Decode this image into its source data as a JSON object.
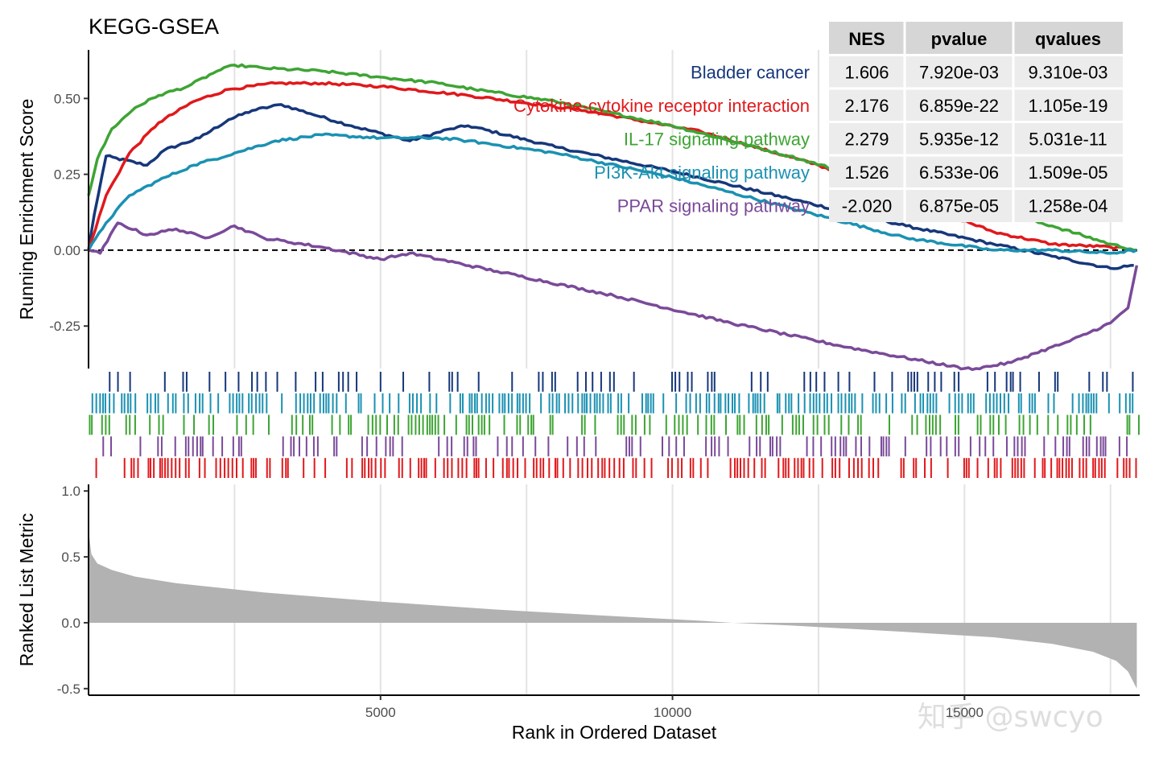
{
  "title": "KEGG-GSEA",
  "watermark": "知乎 @swcyo",
  "chart_data": {
    "type": "line",
    "xlabel": "Rank in Ordered Dataset",
    "xlim": [
      0,
      18000
    ],
    "xticks": [
      5000,
      10000,
      15000
    ],
    "grid": true,
    "legend": "top-right",
    "panels": {
      "es": {
        "ylabel": "Running Enrichment Score",
        "ylim": [
          -0.39,
          0.66
        ],
        "yticks": [
          "0.50",
          "0.25",
          "0.00",
          "-0.25"
        ],
        "zero_line": "dashed"
      },
      "metric": {
        "ylabel": "Ranked List Metric",
        "ylim": [
          -0.55,
          1.05
        ],
        "yticks": [
          "1.0",
          "0.5",
          "0.0",
          "-0.5"
        ]
      }
    },
    "series": [
      {
        "name": "Bladder cancer",
        "color": "#16377a",
        "x": [
          0,
          100,
          300,
          1000,
          1300,
          1900,
          2400,
          2800,
          3300,
          3800,
          4500,
          5500,
          6200,
          6500,
          8000,
          10000,
          12000,
          14000,
          15500,
          16500,
          17500,
          17900
        ],
        "y": [
          0,
          0.12,
          0.31,
          0.28,
          0.33,
          0.37,
          0.43,
          0.46,
          0.48,
          0.45,
          0.41,
          0.36,
          0.4,
          0.41,
          0.34,
          0.26,
          0.17,
          0.08,
          0.02,
          -0.02,
          -0.06,
          -0.05
        ]
      },
      {
        "name": "Cytokine-cytokine receptor interaction",
        "color": "#e0191c",
        "x": [
          0,
          300,
          700,
          1200,
          1800,
          2400,
          3200,
          4000,
          5000,
          6500,
          8500,
          10500,
          12500,
          14000,
          15500,
          16500,
          17500,
          17950
        ],
        "y": [
          0,
          0.18,
          0.32,
          0.42,
          0.49,
          0.53,
          0.55,
          0.55,
          0.54,
          0.51,
          0.46,
          0.39,
          0.28,
          0.17,
          0.06,
          0.02,
          0.01,
          0
        ]
      },
      {
        "name": "IL-17 signaling pathway",
        "color": "#3ea434",
        "x": [
          0,
          150,
          400,
          800,
          1200,
          1700,
          2200,
          2500,
          3000,
          4000,
          5000,
          6000,
          6600,
          8000,
          10000,
          12000,
          14000,
          15500,
          16500,
          17500,
          17950
        ],
        "y": [
          0.18,
          0.3,
          0.4,
          0.47,
          0.51,
          0.54,
          0.59,
          0.61,
          0.6,
          0.59,
          0.57,
          0.55,
          0.53,
          0.49,
          0.41,
          0.31,
          0.2,
          0.13,
          0.08,
          0.02,
          0
        ]
      },
      {
        "name": "PI3K-Akt signaling pathway",
        "color": "#1b91b2",
        "x": [
          0,
          300,
          700,
          1200,
          1800,
          2500,
          3200,
          4000,
          5000,
          6000,
          6500,
          8000,
          10000,
          12000,
          14000,
          15500,
          16500,
          17500,
          17950
        ],
        "y": [
          0,
          0.09,
          0.18,
          0.23,
          0.28,
          0.32,
          0.36,
          0.38,
          0.37,
          0.37,
          0.36,
          0.32,
          0.24,
          0.14,
          0.04,
          0,
          0,
          -0.01,
          0
        ]
      },
      {
        "name": "PPAR signaling pathway",
        "color": "#7a4a99",
        "x": [
          0,
          200,
          500,
          1000,
          1500,
          2000,
          2500,
          3000,
          4000,
          5000,
          5500,
          7000,
          9000,
          11000,
          13000,
          15000,
          15200,
          15800,
          16200,
          16800,
          17500,
          17800,
          17950
        ],
        "y": [
          0,
          -0.01,
          0.09,
          0.05,
          0.07,
          0.04,
          0.08,
          0.04,
          0.01,
          -0.03,
          -0.01,
          -0.07,
          -0.15,
          -0.24,
          -0.32,
          -0.39,
          -0.39,
          -0.37,
          -0.34,
          -0.3,
          -0.24,
          -0.19,
          -0.05
        ]
      }
    ],
    "stats_table": {
      "headers": [
        "NES",
        "pvalue",
        "qvalues"
      ],
      "rows": [
        [
          "1.606",
          "7.920e-03",
          "9.310e-03"
        ],
        [
          "2.176",
          "6.859e-22",
          "1.105e-19"
        ],
        [
          "2.279",
          "5.935e-12",
          "5.031e-11"
        ],
        [
          "1.526",
          "6.533e-06",
          "1.509e-05"
        ],
        [
          "-2.020",
          "6.875e-05",
          "1.258e-04"
        ]
      ]
    },
    "metric_curve": {
      "x": [
        0,
        50,
        150,
        400,
        800,
        1500,
        3000,
        5000,
        7000,
        9000,
        10500,
        11000,
        12000,
        14000,
        15500,
        16500,
        17200,
        17600,
        17800,
        17950
      ],
      "y": [
        0.7,
        0.52,
        0.45,
        0.4,
        0.35,
        0.3,
        0.23,
        0.16,
        0.1,
        0.05,
        0.015,
        0.0,
        -0.02,
        -0.07,
        -0.11,
        -0.16,
        -0.22,
        -0.29,
        -0.37,
        -0.5
      ]
    }
  }
}
